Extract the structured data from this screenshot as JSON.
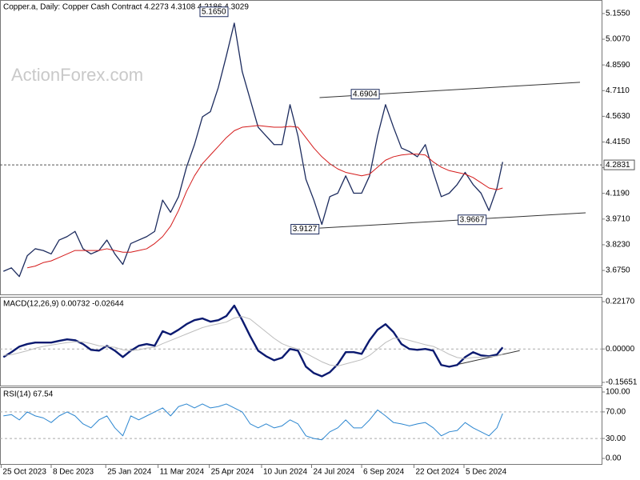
{
  "chart_data": [
    {
      "type": "line",
      "title": "Copper.a, Daily:  Copper Cash Contract  4.2273 4.3108 4.2186 4.3029",
      "watermark": "ActionForex.com",
      "x": [
        "2023-10-27",
        "2023-11-03",
        "2023-11-10",
        "2023-11-17",
        "2023-11-24",
        "2023-12-01",
        "2023-12-08",
        "2023-12-15",
        "2023-12-22",
        "2023-12-29",
        "2024-01-05",
        "2024-01-12",
        "2024-01-19",
        "2024-01-26",
        "2024-02-02",
        "2024-02-09",
        "2024-02-16",
        "2024-02-23",
        "2024-03-01",
        "2024-03-08",
        "2024-03-15",
        "2024-03-22",
        "2024-03-29",
        "2024-04-05",
        "2024-04-12",
        "2024-04-19",
        "2024-04-26",
        "2024-05-03",
        "2024-05-10",
        "2024-05-17",
        "2024-05-24",
        "2024-05-31",
        "2024-06-07",
        "2024-06-14",
        "2024-06-21",
        "2024-06-28",
        "2024-07-05",
        "2024-07-12",
        "2024-07-19",
        "2024-07-26",
        "2024-08-02",
        "2024-08-09",
        "2024-08-16",
        "2024-08-23",
        "2024-08-30",
        "2024-09-06",
        "2024-09-13",
        "2024-09-20",
        "2024-09-27",
        "2024-10-04",
        "2024-10-11",
        "2024-10-18",
        "2024-10-25",
        "2024-11-01",
        "2024-11-08",
        "2024-11-15",
        "2024-11-22",
        "2024-11-29",
        "2024-12-06",
        "2024-12-13",
        "2024-12-20",
        "2024-12-27",
        "2025-01-03",
        "2025-01-08"
      ],
      "xlim": [
        "2023-10-24",
        "2025-04-05"
      ],
      "xticks": [
        {
          "value": "2023-10-25",
          "label": "25 Oct 2023"
        },
        {
          "value": "2023-12-08",
          "label": "8 Dec 2023"
        },
        {
          "value": "2024-01-25",
          "label": "25 Jan 2024"
        },
        {
          "value": "2024-03-11",
          "label": "11 Mar 2024"
        },
        {
          "value": "2024-04-25",
          "label": "25 Apr 2024"
        },
        {
          "value": "2024-06-10",
          "label": "10 Jun 2024"
        },
        {
          "value": "2024-07-24",
          "label": "24 Jul 2024"
        },
        {
          "value": "2024-09-06",
          "label": "6 Sep 2024"
        },
        {
          "value": "2024-10-22",
          "label": "22 Oct 2024"
        },
        {
          "value": "2024-12-05",
          "label": "5 Dec 2024"
        }
      ],
      "ylim": [
        3.537,
        5.233
      ],
      "yticks": [
        {
          "value": 5.155,
          "label": "5.1550"
        },
        {
          "value": 5.007,
          "label": "5.0070"
        },
        {
          "value": 4.859,
          "label": "4.8590"
        },
        {
          "value": 4.711,
          "label": "4.7110"
        },
        {
          "value": 4.563,
          "label": "4.5630"
        },
        {
          "value": 4.415,
          "label": "4.4150"
        },
        {
          "value": 4.267,
          "label": "4.2670"
        },
        {
          "value": 4.119,
          "label": "4.1190"
        },
        {
          "value": 3.971,
          "label": "3.9710"
        },
        {
          "value": 3.823,
          "label": "3.8230"
        },
        {
          "value": 3.675,
          "label": "3.6750"
        }
      ],
      "series": [
        {
          "color": "#1c2b5e",
          "width": 1.3,
          "values": [
            3.67,
            3.69,
            3.64,
            3.76,
            3.8,
            3.79,
            3.77,
            3.85,
            3.87,
            3.9,
            3.8,
            3.77,
            3.79,
            3.85,
            3.77,
            3.71,
            3.83,
            3.85,
            3.87,
            3.9,
            4.08,
            4.01,
            4.1,
            4.27,
            4.4,
            4.56,
            4.59,
            4.73,
            4.91,
            5.1,
            4.82,
            4.66,
            4.5,
            4.45,
            4.4,
            4.4,
            4.63,
            4.45,
            4.2,
            4.08,
            3.94,
            4.1,
            4.12,
            4.22,
            4.12,
            4.12,
            4.22,
            4.45,
            4.63,
            4.5,
            4.38,
            4.36,
            4.33,
            4.4,
            4.24,
            4.1,
            4.12,
            4.17,
            4.24,
            4.17,
            4.12,
            4.02,
            4.15,
            4.3
          ]
        },
        {
          "color": "#d41a1a",
          "width": 1,
          "values": [
            null,
            null,
            null,
            3.69,
            3.7,
            3.72,
            3.73,
            3.75,
            3.77,
            3.79,
            3.79,
            3.79,
            3.79,
            3.8,
            3.79,
            3.78,
            3.78,
            3.79,
            3.8,
            3.83,
            3.87,
            3.93,
            4.02,
            4.13,
            4.22,
            4.29,
            4.34,
            4.39,
            4.44,
            4.48,
            4.5,
            4.505,
            4.51,
            4.505,
            4.5,
            4.5,
            4.505,
            4.5,
            4.44,
            4.38,
            4.33,
            4.29,
            4.26,
            4.24,
            4.23,
            4.22,
            4.23,
            4.27,
            4.31,
            4.33,
            4.34,
            4.345,
            4.345,
            4.34,
            4.3,
            4.27,
            4.25,
            4.24,
            4.23,
            4.21,
            4.18,
            4.15,
            4.14,
            4.15
          ]
        }
      ],
      "last_price": 4.2831,
      "annotations": [
        {
          "x": "2024-05-14",
          "value": 5.165,
          "label": "5.1650"
        },
        {
          "x": "2024-09-24",
          "value": 4.6904
        },
        {
          "x": "2024-08-02",
          "value": 3.9127
        },
        {
          "x": "2024-12-27",
          "value": 3.9667
        }
      ],
      "trendlines": [
        {
          "x": [
            "2024-07-31",
            "2025-03-17"
          ],
          "values": [
            4.671,
            4.759
          ]
        },
        {
          "x": [
            "2024-07-31",
            "2025-03-22"
          ],
          "values": [
            3.919,
            4.007
          ]
        }
      ]
    },
    {
      "type": "line",
      "title": "MACD(12,26,9) 0.00732 -0.02644",
      "ylim": [
        -0.1715,
        0.2405
      ],
      "yticks": [
        {
          "value": 0.2217,
          "label": "0.22170"
        },
        {
          "value": 0,
          "label": "0.00000"
        },
        {
          "value": -0.15651,
          "label": "-0.15651"
        }
      ],
      "levels": [
        0
      ],
      "series": [
        {
          "color": "#0b1a70",
          "width": 2.4,
          "values": [
            -0.038,
            -0.015,
            0.011,
            0.023,
            0.03,
            0.03,
            0.03,
            0.038,
            0.045,
            0.041,
            0.023,
            -0.004,
            -0.008,
            0.015,
            -0.008,
            -0.038,
            -0.008,
            0.015,
            0.023,
            0.015,
            0.083,
            0.068,
            0.09,
            0.116,
            0.135,
            0.143,
            0.128,
            0.135,
            0.154,
            0.203,
            0.135,
            0.06,
            -0.008,
            -0.034,
            -0.053,
            -0.041,
            0.0,
            -0.008,
            -0.083,
            -0.113,
            -0.128,
            -0.109,
            -0.071,
            -0.015,
            -0.015,
            -0.023,
            0.041,
            0.09,
            0.116,
            0.079,
            0.023,
            0.0,
            -0.004,
            0.0,
            -0.008,
            -0.075,
            -0.083,
            -0.075,
            -0.038,
            -0.015,
            -0.03,
            -0.034,
            -0.026,
            0.0073
          ]
        },
        {
          "color": "#bdbdbd",
          "width": 1,
          "values": [
            -0.03,
            -0.027,
            -0.018,
            -0.008,
            0.003,
            0.012,
            0.018,
            0.024,
            0.03,
            0.034,
            0.033,
            0.025,
            0.015,
            0.012,
            0.008,
            -0.004,
            -0.008,
            -0.004,
            0.004,
            0.008,
            0.025,
            0.04,
            0.055,
            0.07,
            0.085,
            0.1,
            0.11,
            0.118,
            0.126,
            0.145,
            0.152,
            0.14,
            0.11,
            0.08,
            0.05,
            0.025,
            0.01,
            0.0,
            -0.02,
            -0.04,
            -0.06,
            -0.075,
            -0.08,
            -0.07,
            -0.06,
            -0.05,
            -0.03,
            0.0,
            0.03,
            0.05,
            0.05,
            0.04,
            0.03,
            0.02,
            0.012,
            -0.005,
            -0.025,
            -0.04,
            -0.045,
            -0.04,
            -0.038,
            -0.036,
            -0.033,
            -0.02644
          ]
        }
      ],
      "trendlines": [
        {
          "x": [
            "2024-11-21",
            "2025-01-23"
          ],
          "values": [
            -0.0827,
            -0.0075
          ]
        }
      ]
    },
    {
      "type": "line",
      "title": "RSI(14) 67.54",
      "ylim": [
        -8.4,
        106
      ],
      "yticks": [
        {
          "value": 100,
          "label": "100.00"
        },
        {
          "value": 70,
          "label": "70.00"
        },
        {
          "value": 30,
          "label": "30.00"
        },
        {
          "value": 0,
          "label": "0.00"
        }
      ],
      "levels": [
        70,
        30
      ],
      "series": [
        {
          "color": "#2b86d0",
          "width": 1,
          "values": [
            64,
            66,
            58,
            70,
            64,
            61,
            54,
            64,
            70,
            64,
            52,
            46,
            58,
            64,
            46,
            34,
            64,
            58,
            64,
            70,
            76,
            64,
            78,
            82,
            76,
            82,
            76,
            78,
            82,
            76,
            70,
            52,
            46,
            52,
            46,
            49,
            58,
            52,
            34,
            30,
            28,
            40,
            46,
            58,
            46,
            46,
            58,
            73,
            64,
            54,
            52,
            49,
            52,
            54,
            46,
            34,
            40,
            42,
            54,
            46,
            40,
            34,
            46,
            67.54
          ]
        }
      ]
    }
  ]
}
